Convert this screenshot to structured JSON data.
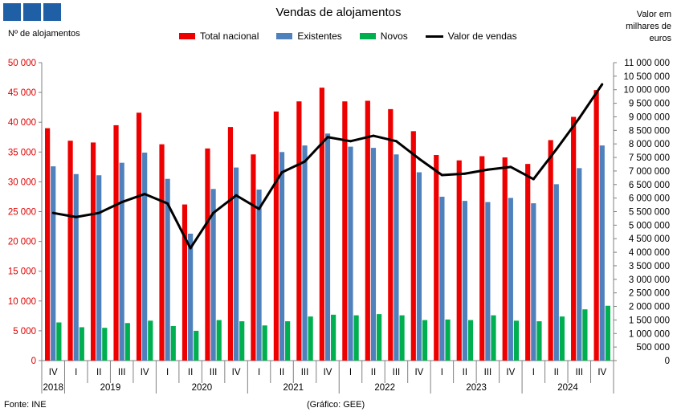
{
  "header": {
    "title": "Vendas de alojamentos",
    "y_left_label": "Nº de alojamentos",
    "y_right_label_lines": [
      "Valor em",
      "milhares de",
      "euros"
    ]
  },
  "footer": {
    "source": "Fonte: INE",
    "credit": "(Gráfico: GEE)"
  },
  "colors": {
    "total": "#ee0000",
    "existentes": "#4f81bd",
    "novos": "#00b050",
    "valor": "#000000",
    "logo": "#1f5fa6"
  },
  "chart_data": {
    "type": "bar",
    "title": "Vendas de alojamentos",
    "ylabel": "Nº de alojamentos",
    "y2label": "Valor em milhares de euros",
    "ylim": [
      0,
      50000
    ],
    "y2lim": [
      0,
      11000000
    ],
    "left_ticks": [
      "0",
      "5 000",
      "10 000",
      "15 000",
      "20 000",
      "25 000",
      "30 000",
      "35 000",
      "40 000",
      "45 000",
      "50 000"
    ],
    "right_ticks": [
      "0",
      "500 000",
      "1 000 000",
      "1 500 000",
      "2 000 000",
      "2 500 000",
      "3 000 000",
      "3 500 000",
      "4 000 000",
      "4 500 000",
      "5 000 000",
      "5 500 000",
      "6 000 000",
      "6 500 000",
      "7 000 000",
      "7 500 000",
      "8 000 000",
      "8 500 000",
      "9 000 000",
      "9 500 000",
      "10 000 000",
      "10 500 000",
      "11 000 000"
    ],
    "quarters": [
      "IV",
      "I",
      "II",
      "III",
      "IV",
      "I",
      "II",
      "III",
      "IV",
      "I",
      "II",
      "III",
      "IV",
      "I",
      "II",
      "III",
      "IV",
      "I",
      "II",
      "III",
      "IV",
      "I",
      "II",
      "III",
      "IV"
    ],
    "years": [
      {
        "label": "2018",
        "count": 1
      },
      {
        "label": "2019",
        "count": 4
      },
      {
        "label": "2020",
        "count": 4
      },
      {
        "label": "2021",
        "count": 4
      },
      {
        "label": "2022",
        "count": 4
      },
      {
        "label": "2023",
        "count": 4
      },
      {
        "label": "2024",
        "count": 4
      }
    ],
    "legend_position": "top",
    "grid": false,
    "series": [
      {
        "name": "Total nacional",
        "axis": "left",
        "kind": "bar",
        "values": [
          39000,
          36900,
          36600,
          39500,
          41600,
          36300,
          26200,
          35600,
          39200,
          34600,
          41800,
          43500,
          45800,
          43500,
          43600,
          42200,
          38500,
          34500,
          33600,
          34300,
          34100,
          33000,
          37000,
          40900,
          45400
        ]
      },
      {
        "name": "Existentes",
        "axis": "left",
        "kind": "bar",
        "values": [
          32600,
          31300,
          31100,
          33200,
          34900,
          30500,
          21300,
          28800,
          32400,
          28700,
          35000,
          36100,
          38100,
          35900,
          35700,
          34600,
          31600,
          27500,
          26800,
          26600,
          27300,
          26400,
          29600,
          32300,
          36100
        ]
      },
      {
        "name": "Novos",
        "axis": "left",
        "kind": "bar",
        "values": [
          6400,
          5600,
          5500,
          6300,
          6700,
          5800,
          5000,
          6800,
          6600,
          5900,
          6600,
          7400,
          7700,
          7600,
          7800,
          7600,
          6800,
          6900,
          6800,
          7600,
          6700,
          6600,
          7400,
          8600,
          9200
        ]
      },
      {
        "name": "Valor de vendas",
        "axis": "right",
        "kind": "line",
        "values": [
          5450000,
          5300000,
          5450000,
          5850000,
          6150000,
          5800000,
          4150000,
          5450000,
          6100000,
          5600000,
          6950000,
          7350000,
          8250000,
          8100000,
          8300000,
          8100000,
          7450000,
          6850000,
          6900000,
          7050000,
          7150000,
          6700000,
          7800000,
          8950000,
          10200000
        ]
      }
    ]
  }
}
